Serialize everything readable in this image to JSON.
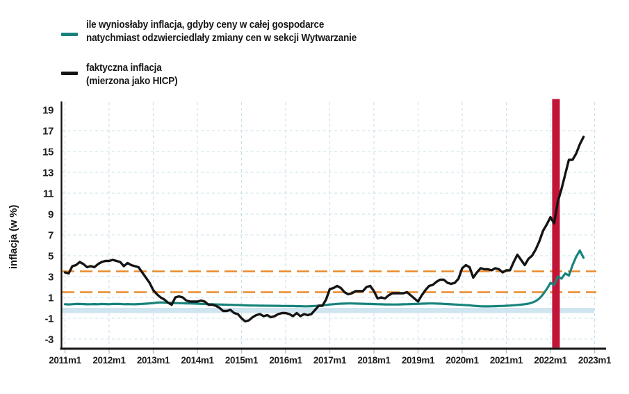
{
  "page": {
    "background": "#ffffff"
  },
  "legend": {
    "items": [
      {
        "id": "counterfactual",
        "color": "#17837b",
        "lines": [
          "ile wyniosłaby inflacja, gdyby ceny w całej gospodarce",
          "natychmiast odzwierciedlały zmiany cen w sekcji Wytwarzanie"
        ]
      },
      {
        "id": "actual",
        "color": "#141414",
        "lines": [
          "faktyczna inflacja",
          "(mierzona jako HICP)"
        ]
      }
    ]
  },
  "chart_data": {
    "type": "line",
    "title": "",
    "xlabel": "",
    "ylabel": "inflacja (w %)",
    "ylim": [
      -4,
      19.5
    ],
    "yticks": [
      19,
      17,
      15,
      13,
      11,
      9,
      7,
      5,
      3,
      1,
      -1,
      -3
    ],
    "grid_yticks": [
      17,
      15,
      13,
      11,
      9,
      7,
      5,
      3,
      1,
      -1,
      -3
    ],
    "x_tick_labels": [
      "2011m1",
      "2012m1",
      "2013m1",
      "2014m1",
      "2015m1",
      "2016m1",
      "2017m1",
      "2018m1",
      "2019m1",
      "2020m1",
      "2021m1",
      "2022m1",
      "2023m1"
    ],
    "x_start_period": "2011m1",
    "x_frequency": "monthly",
    "grid": "dashed",
    "gridline_color": "#c9e0ea",
    "legend_position": "top-left",
    "reference_lines": {
      "values": [
        3.5,
        1.5
      ],
      "style": "dashed",
      "color": "#e98b2d"
    },
    "zero_band": {
      "from": 0.0,
      "to": -0.5,
      "color": "#cfe5ef"
    },
    "event_line": {
      "period": "2022m2",
      "color": "#c31336"
    },
    "series": [
      {
        "name": "counterfactual",
        "label": "ile wyniosłaby inflacja, gdyby ceny w całej gospodarce natychmiast odzwierciedlały zmiany cen w sekcji Wytwarzanie",
        "color": "#17837b",
        "start": "2011m1",
        "values": [
          0.35,
          0.33,
          0.35,
          0.37,
          0.38,
          0.36,
          0.34,
          0.35,
          0.36,
          0.35,
          0.37,
          0.36,
          0.35,
          0.37,
          0.38,
          0.37,
          0.35,
          0.36,
          0.35,
          0.34,
          0.36,
          0.38,
          0.4,
          0.43,
          0.46,
          0.5,
          0.52,
          0.51,
          0.49,
          0.47,
          0.46,
          0.45,
          0.44,
          0.43,
          0.42,
          0.41,
          0.4,
          0.38,
          0.37,
          0.35,
          0.34,
          0.33,
          0.32,
          0.31,
          0.3,
          0.29,
          0.28,
          0.27,
          0.26,
          0.24,
          0.23,
          0.22,
          0.22,
          0.21,
          0.21,
          0.2,
          0.2,
          0.19,
          0.19,
          0.18,
          0.18,
          0.17,
          0.17,
          0.16,
          0.16,
          0.15,
          0.15,
          0.16,
          0.18,
          0.21,
          0.24,
          0.28,
          0.32,
          0.35,
          0.38,
          0.4,
          0.41,
          0.42,
          0.42,
          0.41,
          0.4,
          0.39,
          0.38,
          0.37,
          0.36,
          0.35,
          0.34,
          0.33,
          0.33,
          0.32,
          0.32,
          0.33,
          0.34,
          0.35,
          0.36,
          0.37,
          0.38,
          0.4,
          0.41,
          0.42,
          0.42,
          0.41,
          0.4,
          0.38,
          0.36,
          0.34,
          0.32,
          0.3,
          0.28,
          0.26,
          0.24,
          0.2,
          0.17,
          0.15,
          0.14,
          0.14,
          0.15,
          0.16,
          0.17,
          0.18,
          0.2,
          0.22,
          0.25,
          0.28,
          0.31,
          0.35,
          0.4,
          0.5,
          0.65,
          0.9,
          1.3,
          1.8,
          2.4,
          2.2,
          3.0,
          2.8,
          3.3,
          3.1,
          4.1,
          4.9,
          5.5,
          4.8
        ]
      },
      {
        "name": "hicp",
        "label": "faktyczna inflacja (mierzona jako HICP)",
        "color": "#141414",
        "start": "2011m1",
        "values": [
          3.4,
          3.3,
          4.0,
          4.1,
          4.4,
          4.2,
          3.9,
          4.0,
          3.9,
          4.2,
          4.4,
          4.5,
          4.5,
          4.6,
          4.5,
          4.4,
          4.0,
          4.3,
          4.1,
          4.0,
          3.9,
          3.4,
          2.9,
          2.4,
          1.7,
          1.3,
          1.0,
          0.8,
          0.5,
          0.3,
          1.0,
          1.1,
          1.0,
          0.7,
          0.6,
          0.6,
          0.6,
          0.7,
          0.6,
          0.3,
          0.3,
          0.2,
          0.0,
          -0.3,
          -0.3,
          -0.2,
          -0.5,
          -0.6,
          -1.0,
          -1.3,
          -1.2,
          -0.9,
          -0.7,
          -0.6,
          -0.8,
          -0.7,
          -0.9,
          -0.8,
          -0.6,
          -0.5,
          -0.5,
          -0.6,
          -0.8,
          -0.5,
          -0.8,
          -0.6,
          -0.7,
          -0.6,
          -0.2,
          0.2,
          0.2,
          0.8,
          1.8,
          1.9,
          2.1,
          1.9,
          1.5,
          1.3,
          1.4,
          1.6,
          1.6,
          1.6,
          2.0,
          2.1,
          1.6,
          0.9,
          1.0,
          0.9,
          1.2,
          1.4,
          1.4,
          1.4,
          1.4,
          1.5,
          1.2,
          0.9,
          0.6,
          1.2,
          1.7,
          2.1,
          2.2,
          2.5,
          2.7,
          2.7,
          2.4,
          2.3,
          2.4,
          2.8,
          3.8,
          4.1,
          3.9,
          2.9,
          3.4,
          3.8,
          3.7,
          3.7,
          3.6,
          3.8,
          3.7,
          3.4,
          3.6,
          3.6,
          4.4,
          5.1,
          4.6,
          4.1,
          4.7,
          5.0,
          5.6,
          6.4,
          7.4,
          8.0,
          8.7,
          8.1,
          10.2,
          11.4,
          12.8,
          14.2,
          14.2,
          14.8,
          15.7,
          16.4
        ]
      }
    ]
  }
}
